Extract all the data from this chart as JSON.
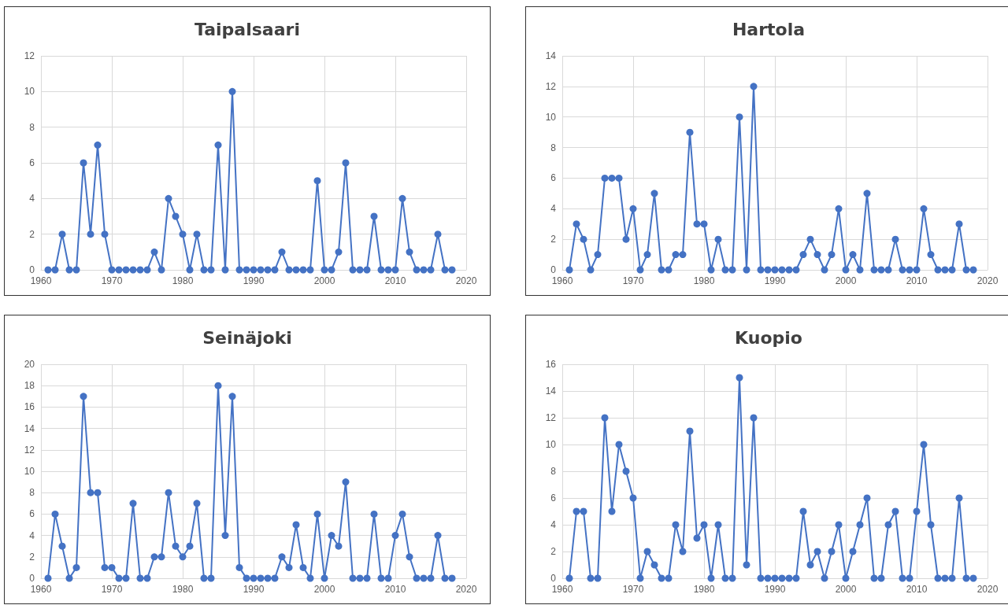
{
  "chart_data": [
    {
      "type": "line",
      "title": "Taipalsaari",
      "x": [
        1961,
        1962,
        1963,
        1964,
        1965,
        1966,
        1967,
        1968,
        1969,
        1970,
        1971,
        1972,
        1973,
        1974,
        1975,
        1976,
        1977,
        1978,
        1979,
        1980,
        1981,
        1982,
        1983,
        1984,
        1985,
        1986,
        1987,
        1988,
        1989,
        1990,
        1991,
        1992,
        1993,
        1994,
        1995,
        1996,
        1997,
        1998,
        1999,
        2000,
        2001,
        2002,
        2003,
        2004,
        2005,
        2006,
        2007,
        2008,
        2009,
        2010,
        2011,
        2012,
        2013,
        2014,
        2015,
        2016,
        2017,
        2018
      ],
      "series": [
        {
          "color": "#4472c4",
          "values": [
            0,
            0,
            2,
            0,
            0,
            6,
            2,
            7,
            2,
            0,
            0,
            0,
            0,
            0,
            0,
            1,
            0,
            4,
            3,
            2,
            0,
            2,
            0,
            0,
            7,
            0,
            10,
            0,
            0,
            0,
            0,
            0,
            0,
            1,
            0,
            0,
            0,
            0,
            5,
            0,
            0,
            1,
            6,
            0,
            0,
            0,
            3,
            0,
            0,
            0,
            4,
            1,
            0,
            0,
            0,
            2,
            0,
            0
          ]
        }
      ],
      "xlim": [
        1960,
        2020
      ],
      "xticks": [
        1960,
        1970,
        1980,
        1990,
        2000,
        2010,
        2020
      ],
      "ylim": [
        0,
        12
      ],
      "yticks": [
        0,
        2,
        4,
        6,
        8,
        10,
        12
      ],
      "grid": true,
      "marker": "circle"
    },
    {
      "type": "line",
      "title": "Hartola",
      "x": [
        1961,
        1962,
        1963,
        1964,
        1965,
        1966,
        1967,
        1968,
        1969,
        1970,
        1971,
        1972,
        1973,
        1974,
        1975,
        1976,
        1977,
        1978,
        1979,
        1980,
        1981,
        1982,
        1983,
        1984,
        1985,
        1986,
        1987,
        1988,
        1989,
        1990,
        1991,
        1992,
        1993,
        1994,
        1995,
        1996,
        1997,
        1998,
        1999,
        2000,
        2001,
        2002,
        2003,
        2004,
        2005,
        2006,
        2007,
        2008,
        2009,
        2010,
        2011,
        2012,
        2013,
        2014,
        2015,
        2016,
        2017,
        2018
      ],
      "series": [
        {
          "color": "#4472c4",
          "values": [
            0,
            3,
            2,
            0,
            1,
            6,
            6,
            6,
            2,
            4,
            0,
            1,
            5,
            0,
            0,
            1,
            1,
            9,
            3,
            3,
            0,
            2,
            0,
            0,
            10,
            0,
            12,
            0,
            0,
            0,
            0,
            0,
            0,
            1,
            2,
            1,
            0,
            1,
            4,
            0,
            1,
            0,
            5,
            0,
            0,
            0,
            2,
            0,
            0,
            0,
            4,
            1,
            0,
            0,
            0,
            3,
            0,
            0
          ]
        }
      ],
      "xlim": [
        1960,
        2020
      ],
      "xticks": [
        1960,
        1970,
        1980,
        1990,
        2000,
        2010,
        2020
      ],
      "ylim": [
        0,
        14
      ],
      "yticks": [
        0,
        2,
        4,
        6,
        8,
        10,
        12,
        14
      ],
      "grid": true,
      "marker": "circle"
    },
    {
      "type": "line",
      "title": "Seinäjoki",
      "x": [
        1961,
        1962,
        1963,
        1964,
        1965,
        1966,
        1967,
        1968,
        1969,
        1970,
        1971,
        1972,
        1973,
        1974,
        1975,
        1976,
        1977,
        1978,
        1979,
        1980,
        1981,
        1982,
        1983,
        1984,
        1985,
        1986,
        1987,
        1988,
        1989,
        1990,
        1991,
        1992,
        1993,
        1994,
        1995,
        1996,
        1997,
        1998,
        1999,
        2000,
        2001,
        2002,
        2003,
        2004,
        2005,
        2006,
        2007,
        2008,
        2009,
        2010,
        2011,
        2012,
        2013,
        2014,
        2015,
        2016,
        2017,
        2018
      ],
      "series": [
        {
          "color": "#4472c4",
          "values": [
            0,
            6,
            3,
            0,
            1,
            17,
            8,
            8,
            1,
            1,
            0,
            0,
            7,
            0,
            0,
            2,
            2,
            8,
            3,
            2,
            3,
            7,
            0,
            0,
            18,
            4,
            17,
            1,
            0,
            0,
            0,
            0,
            0,
            2,
            1,
            5,
            1,
            0,
            6,
            0,
            4,
            3,
            9,
            0,
            0,
            0,
            6,
            0,
            0,
            4,
            6,
            2,
            0,
            0,
            0,
            4,
            0,
            0
          ]
        }
      ],
      "xlim": [
        1960,
        2020
      ],
      "xticks": [
        1960,
        1970,
        1980,
        1990,
        2000,
        2010,
        2020
      ],
      "ylim": [
        0,
        20
      ],
      "yticks": [
        0,
        2,
        4,
        6,
        8,
        10,
        12,
        14,
        16,
        18,
        20
      ],
      "grid": true,
      "marker": "circle"
    },
    {
      "type": "line",
      "title": "Kuopio",
      "x": [
        1961,
        1962,
        1963,
        1964,
        1965,
        1966,
        1967,
        1968,
        1969,
        1970,
        1971,
        1972,
        1973,
        1974,
        1975,
        1976,
        1977,
        1978,
        1979,
        1980,
        1981,
        1982,
        1983,
        1984,
        1985,
        1986,
        1987,
        1988,
        1989,
        1990,
        1991,
        1992,
        1993,
        1994,
        1995,
        1996,
        1997,
        1998,
        1999,
        2000,
        2001,
        2002,
        2003,
        2004,
        2005,
        2006,
        2007,
        2008,
        2009,
        2010,
        2011,
        2012,
        2013,
        2014,
        2015,
        2016,
        2017,
        2018
      ],
      "series": [
        {
          "color": "#4472c4",
          "values": [
            0,
            5,
            5,
            0,
            0,
            12,
            5,
            10,
            8,
            6,
            0,
            2,
            1,
            0,
            0,
            4,
            2,
            11,
            3,
            4,
            0,
            4,
            0,
            0,
            15,
            1,
            12,
            0,
            0,
            0,
            0,
            0,
            0,
            5,
            1,
            2,
            0,
            2,
            4,
            0,
            2,
            4,
            6,
            0,
            0,
            4,
            5,
            0,
            0,
            5,
            10,
            4,
            0,
            0,
            0,
            6,
            0,
            0
          ]
        }
      ],
      "xlim": [
        1960,
        2020
      ],
      "xticks": [
        1960,
        1970,
        1980,
        1990,
        2000,
        2010,
        2020
      ],
      "ylim": [
        0,
        16
      ],
      "yticks": [
        0,
        2,
        4,
        6,
        8,
        10,
        12,
        14,
        16
      ],
      "grid": true,
      "marker": "circle"
    }
  ]
}
